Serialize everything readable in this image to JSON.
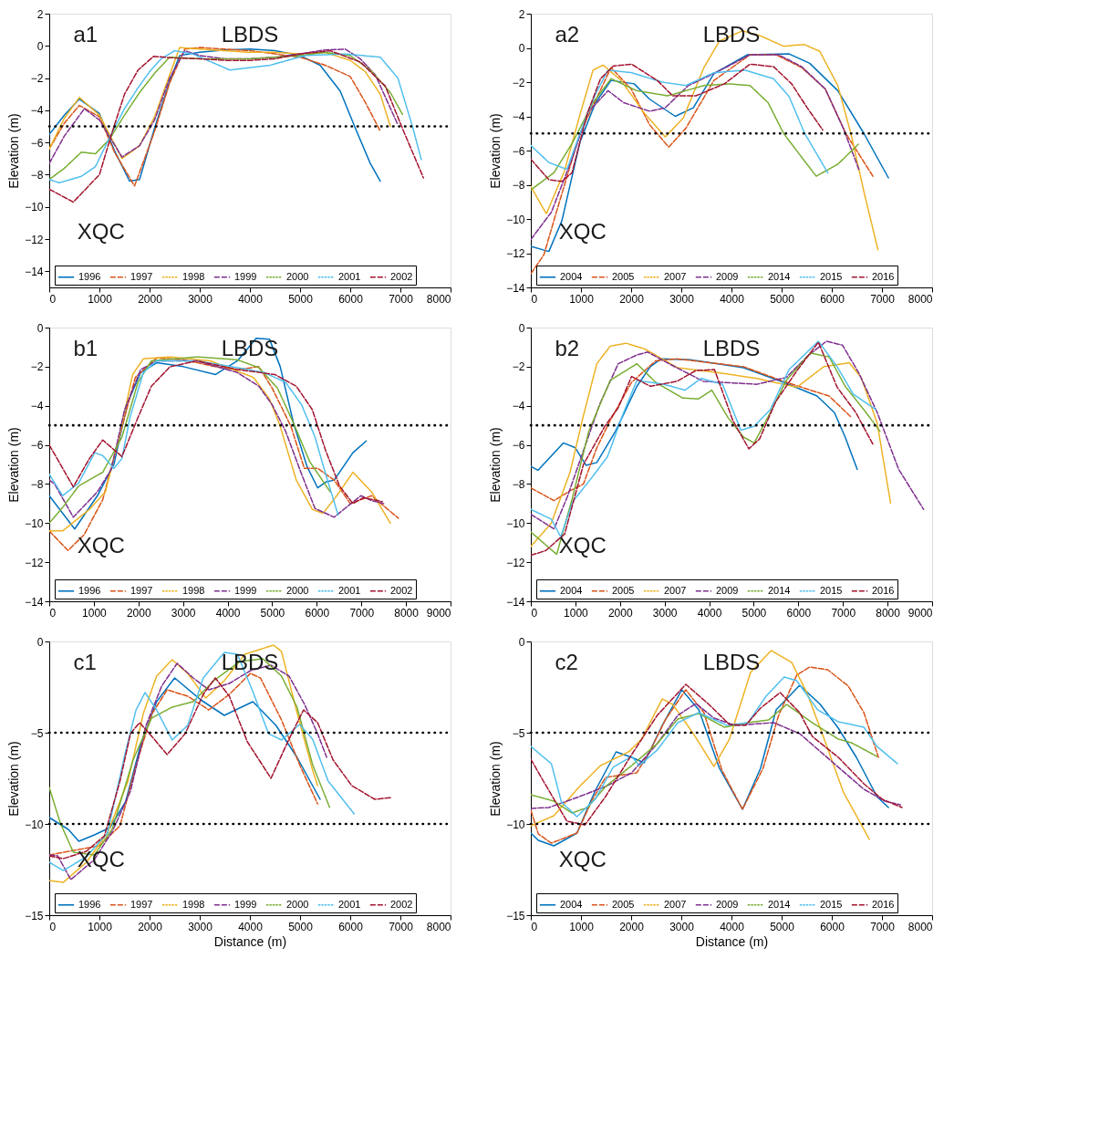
{
  "chart_data": [
    {
      "type": "line",
      "ylabel": "Elevation (m)",
      "xlim": [
        0,
        8000
      ],
      "xticks": [
        0,
        1000,
        2000,
        3000,
        4000,
        5000,
        6000,
        7000,
        8000
      ],
      "ylim": [
        -15,
        2
      ],
      "yticks": [
        2,
        0,
        -2,
        -4,
        -6,
        -8,
        -10,
        -12,
        -14
      ],
      "legend": "bottom",
      "ref_lines": [
        {
          "axis": "y",
          "value": -5,
          "color": "#000000",
          "line_style": "dotted"
        }
      ],
      "annotations": [
        "a1",
        "LBDS",
        "XQC"
      ],
      "series": [
        {
          "name": "1996",
          "color": "#0072bd",
          "line_style": "solid",
          "x": [
            0,
            300,
            600,
            1000,
            1300,
            1600,
            1800,
            2100,
            2400,
            2600,
            3000,
            3500,
            4000,
            4500,
            5000,
            5400,
            5800,
            6100,
            6400,
            6600
          ],
          "values": [
            -5.5,
            -4.3,
            -3.3,
            -4.2,
            -6.5,
            -8.4,
            -8.3,
            -5.1,
            -2.2,
            -0.6,
            -0.4,
            -0.25,
            -0.2,
            -0.3,
            -0.6,
            -1.2,
            -2.8,
            -5.1,
            -7.3,
            -8.4
          ]
        },
        {
          "name": "1997",
          "color": "#d95319",
          "line_style": "dashed",
          "x": [
            0,
            300,
            600,
            1000,
            1300,
            1700,
            2100,
            2400,
            2700,
            3000,
            3500,
            4000,
            4500,
            5000,
            5500,
            6000,
            6300,
            6600
          ],
          "values": [
            -6.4,
            -4.8,
            -3.7,
            -4.4,
            -6.6,
            -8.7,
            -5.3,
            -2.3,
            -0.2,
            -0.1,
            -0.2,
            -0.3,
            -0.5,
            -0.7,
            -1.2,
            -1.9,
            -3.5,
            -5.3
          ]
        },
        {
          "name": "1998",
          "color": "#edb120",
          "line_style": "dotted",
          "x": [
            0,
            300,
            600,
            1000,
            1450,
            1800,
            2100,
            2400,
            2600,
            3000,
            3500,
            4000,
            4500,
            5000,
            5500,
            6000,
            6300,
            6600,
            6800
          ],
          "values": [
            -6.4,
            -4.5,
            -3.2,
            -4.3,
            -7.0,
            -6.2,
            -4.4,
            -1.8,
            -0.1,
            -0.2,
            -0.3,
            -0.4,
            -0.4,
            -0.5,
            -0.4,
            -0.9,
            -1.6,
            -3.0,
            -5.0
          ]
        },
        {
          "name": "1999",
          "color": "#7e2f8e",
          "line_style": "dashed",
          "x": [
            0,
            300,
            700,
            1000,
            1450,
            1800,
            2100,
            2400,
            2700,
            3000,
            3500,
            4000,
            4500,
            5000,
            5500,
            5900,
            6200,
            6500,
            6950
          ],
          "values": [
            -7.3,
            -5.6,
            -3.9,
            -4.6,
            -6.9,
            -6.2,
            -4.6,
            -2.0,
            -0.3,
            -0.6,
            -0.8,
            -0.8,
            -0.7,
            -0.5,
            -0.25,
            -0.2,
            -0.8,
            -1.8,
            -4.9
          ]
        },
        {
          "name": "2000",
          "color": "#77ac30",
          "line_style": "dotted",
          "x": [
            0,
            300,
            640,
            920,
            1200,
            1500,
            1800,
            2100,
            2400,
            3000,
            3500,
            4000,
            4500,
            5000,
            5500,
            6000,
            6400,
            6800,
            7050
          ],
          "values": [
            -8.3,
            -7.6,
            -6.6,
            -6.7,
            -5.8,
            -4.3,
            -2.9,
            -1.7,
            -0.7,
            -0.8,
            -0.8,
            -0.8,
            -0.7,
            -0.6,
            -0.4,
            -0.6,
            -1.5,
            -2.9,
            -4.3
          ]
        },
        {
          "name": "2001",
          "color": "#4dbeee",
          "line_style": "dotted",
          "x": [
            0,
            200,
            640,
            920,
            1250,
            1500,
            1770,
            2000,
            2230,
            2500,
            2860,
            3600,
            4400,
            5100,
            5900,
            6600,
            6950,
            7250,
            7420
          ],
          "values": [
            -8.3,
            -8.5,
            -8.1,
            -7.5,
            -5.4,
            -3.9,
            -2.6,
            -1.6,
            -0.8,
            -0.3,
            -0.5,
            -1.5,
            -1.2,
            -0.6,
            -0.5,
            -0.7,
            -2.0,
            -5.1,
            -7.1
          ]
        },
        {
          "name": "2002",
          "color": "#a2142f",
          "line_style": "dashed",
          "x": [
            0,
            480,
            1000,
            1250,
            1500,
            1770,
            2080,
            2500,
            3000,
            3500,
            4000,
            4500,
            5000,
            5600,
            6200,
            6700,
            7050,
            7460
          ],
          "values": [
            -8.9,
            -9.7,
            -8.0,
            -5.4,
            -3.0,
            -1.5,
            -0.65,
            -0.75,
            -0.8,
            -0.9,
            -0.9,
            -0.8,
            -0.5,
            -0.3,
            -1.0,
            -2.5,
            -5.2,
            -8.2
          ]
        }
      ]
    },
    {
      "type": "line",
      "ylabel": "Elevation (m)",
      "xlim": [
        0,
        8000
      ],
      "xticks": [
        0,
        1000,
        2000,
        3000,
        4000,
        5000,
        6000,
        7000,
        8000
      ],
      "ylim": [
        -14,
        2
      ],
      "yticks": [
        2,
        0,
        -2,
        -4,
        -6,
        -8,
        -10,
        -12,
        -14
      ],
      "legend": "bottom",
      "ref_lines": [
        {
          "axis": "y",
          "value": -5,
          "color": "#000000",
          "line_style": "dotted"
        }
      ],
      "annotations": [
        "a2",
        "LBDS",
        "XQC"
      ],
      "series": [
        {
          "name": "2004",
          "color": "#0072bd",
          "line_style": "solid",
          "x": [
            0,
            360,
            620,
            980,
            1290,
            1600,
            2060,
            2370,
            2880,
            3240,
            3650,
            4320,
            5150,
            5560,
            6120,
            6640,
            7130
          ],
          "values": [
            -11.6,
            -11.9,
            -10.1,
            -5.5,
            -3.2,
            -1.9,
            -2.1,
            -3.0,
            -4.0,
            -3.5,
            -1.5,
            -0.4,
            -0.35,
            -0.9,
            -2.5,
            -5.0,
            -7.6
          ]
        },
        {
          "name": "2005",
          "color": "#d95319",
          "line_style": "dashed",
          "x": [
            0,
            260,
            570,
            980,
            1600,
            2000,
            2370,
            2750,
            3090,
            3650,
            4370,
            4890,
            5400,
            5870,
            6280,
            6820
          ],
          "values": [
            -13.2,
            -12.1,
            -9.0,
            -5.0,
            -1.15,
            -2.4,
            -4.5,
            -5.8,
            -4.7,
            -1.9,
            -0.4,
            -0.4,
            -1.15,
            -2.4,
            -5.0,
            -7.5
          ]
        },
        {
          "name": "2007",
          "color": "#edb120",
          "line_style": "dotted",
          "x": [
            0,
            310,
            670,
            980,
            1240,
            1440,
            1800,
            2260,
            2680,
            3040,
            3450,
            3760,
            4220,
            4580,
            5040,
            5450,
            5760,
            6120,
            6380,
            6640,
            6920
          ],
          "values": [
            -8.1,
            -9.7,
            -7.2,
            -3.9,
            -1.3,
            -1.0,
            -1.9,
            -3.8,
            -5.2,
            -4.1,
            -1.15,
            0.4,
            1.0,
            0.7,
            0.1,
            0.2,
            -0.2,
            -2.2,
            -5.0,
            -8.4,
            -11.8
          ]
        },
        {
          "name": "2009",
          "color": "#7e2f8e",
          "line_style": "dashed",
          "x": [
            0,
            410,
            820,
            1130,
            1540,
            1850,
            2370,
            2680,
            3140,
            3650,
            4370,
            4940,
            5400,
            5870,
            6230,
            6540
          ],
          "values": [
            -11.2,
            -9.6,
            -6.5,
            -3.8,
            -2.5,
            -3.2,
            -3.7,
            -3.5,
            -2.2,
            -1.5,
            -0.4,
            -0.4,
            -1.1,
            -2.4,
            -4.7,
            -7.1
          ]
        },
        {
          "name": "2014",
          "color": "#77ac30",
          "line_style": "dotted",
          "x": [
            0,
            460,
            820,
            1240,
            1600,
            2110,
            2730,
            3450,
            3960,
            4370,
            4730,
            5040,
            5350,
            5690,
            6120,
            6540
          ],
          "values": [
            -8.3,
            -7.3,
            -5.6,
            -3.2,
            -1.8,
            -2.5,
            -2.8,
            -2.2,
            -2.1,
            -2.2,
            -3.2,
            -5.0,
            -6.2,
            -7.5,
            -6.8,
            -5.6
          ]
        },
        {
          "name": "2015",
          "color": "#4dbeee",
          "line_style": "dotted",
          "x": [
            0,
            360,
            720,
            980,
            1290,
            1540,
            2010,
            2620,
            3090,
            3650,
            4270,
            4840,
            5150,
            5460,
            5920
          ],
          "values": [
            -5.7,
            -6.7,
            -7.1,
            -5.0,
            -2.7,
            -1.3,
            -1.45,
            -2.0,
            -2.2,
            -1.45,
            -1.3,
            -1.8,
            -2.85,
            -5.0,
            -7.3
          ]
        },
        {
          "name": "2016",
          "color": "#a2142f",
          "line_style": "dashed",
          "x": [
            0,
            360,
            620,
            820,
            1130,
            1390,
            1650,
            2010,
            2520,
            2830,
            3290,
            3860,
            4370,
            4840,
            5200,
            5510,
            5820
          ],
          "values": [
            -6.5,
            -7.7,
            -7.8,
            -7.3,
            -3.8,
            -1.8,
            -1.05,
            -0.95,
            -1.9,
            -2.8,
            -2.8,
            -2.1,
            -0.95,
            -1.1,
            -2.1,
            -3.5,
            -4.8
          ]
        }
      ]
    },
    {
      "type": "line",
      "ylabel": "Elevation (m)",
      "xlim": [
        0,
        9000
      ],
      "xticks": [
        0,
        1000,
        2000,
        3000,
        4000,
        5000,
        6000,
        7000,
        8000,
        9000
      ],
      "ylim": [
        -14,
        0
      ],
      "yticks": [
        0,
        -2,
        -4,
        -6,
        -8,
        -10,
        -12,
        -14
      ],
      "legend": "bottom",
      "ref_lines": [
        {
          "axis": "y",
          "value": -5,
          "color": "#000000",
          "line_style": "dotted"
        }
      ],
      "annotations": [
        "b1",
        "LBDS",
        "XQC"
      ],
      "series": [
        {
          "name": "1996",
          "color": "#0072bd",
          "line_style": "solid",
          "x": [
            0,
            570,
            1080,
            1450,
            1750,
            2050,
            2410,
            3010,
            3730,
            4220,
            4640,
            4940,
            5180,
            5480,
            5780,
            6020,
            6200,
            6390,
            6810,
            7110
          ],
          "values": [
            -8.6,
            -10.3,
            -8.6,
            -7.0,
            -3.9,
            -2.3,
            -1.8,
            -2.0,
            -2.4,
            -1.7,
            -0.55,
            -0.6,
            -2.0,
            -4.9,
            -7.1,
            -8.2,
            -7.9,
            -7.8,
            -6.4,
            -5.8
          ]
        },
        {
          "name": "1997",
          "color": "#d95319",
          "line_style": "dashed",
          "x": [
            0,
            420,
            780,
            1200,
            1570,
            1930,
            2410,
            3010,
            3730,
            4220,
            4700,
            5000,
            5420,
            5720,
            6020,
            6390,
            6750,
            7230,
            7830
          ],
          "values": [
            -10.4,
            -11.4,
            -10.6,
            -8.8,
            -5.6,
            -2.55,
            -1.55,
            -1.65,
            -2.0,
            -2.15,
            -2.0,
            -3.1,
            -5.05,
            -7.2,
            -7.2,
            -7.8,
            -9.0,
            -8.6,
            -9.75
          ]
        },
        {
          "name": "1998",
          "color": "#edb120",
          "line_style": "dotted",
          "x": [
            0,
            300,
            900,
            1260,
            1570,
            1870,
            2110,
            2710,
            3610,
            4580,
            4940,
            5180,
            5540,
            5900,
            6140,
            6450,
            6810,
            7230,
            7650
          ],
          "values": [
            -10.4,
            -10.4,
            -9.3,
            -8.4,
            -5.6,
            -2.4,
            -1.6,
            -1.5,
            -1.7,
            -2.55,
            -3.65,
            -5.05,
            -7.8,
            -9.3,
            -9.5,
            -8.6,
            -7.4,
            -8.4,
            -10.0
          ]
        },
        {
          "name": "1999",
          "color": "#7e2f8e",
          "line_style": "dashed",
          "x": [
            0,
            120,
            540,
            1080,
            1390,
            1690,
            2050,
            2410,
            3310,
            4220,
            4700,
            5000,
            5300,
            5660,
            5960,
            6390,
            6630,
            6990,
            7230,
            7500
          ],
          "values": [
            -7.8,
            -8.0,
            -9.7,
            -8.4,
            -7.25,
            -4.2,
            -2.15,
            -1.7,
            -1.7,
            -2.3,
            -3.0,
            -3.95,
            -5.3,
            -7.5,
            -9.25,
            -9.7,
            -9.25,
            -8.6,
            -8.85,
            -9.0
          ]
        },
        {
          "name": "2000",
          "color": "#77ac30",
          "line_style": "dotted",
          "x": [
            0,
            300,
            660,
            1200,
            1630,
            1990,
            2290,
            3310,
            4220,
            4700,
            5120,
            5480,
            5840,
            6300
          ],
          "values": [
            -10.0,
            -9.2,
            -8.1,
            -7.4,
            -5.6,
            -2.8,
            -1.7,
            -1.5,
            -1.65,
            -2.05,
            -3.1,
            -4.9,
            -6.85,
            -8.4
          ]
        },
        {
          "name": "2001",
          "color": "#4dbeee",
          "line_style": "dotted",
          "x": [
            0,
            300,
            660,
            1020,
            1200,
            1450,
            1630,
            1810,
            2110,
            2410,
            3310,
            4220,
            4820,
            5300,
            5660,
            5960,
            6200,
            6480
          ],
          "values": [
            -7.5,
            -8.6,
            -7.95,
            -6.4,
            -6.55,
            -7.2,
            -6.7,
            -4.6,
            -2.3,
            -1.7,
            -1.7,
            -2.05,
            -2.3,
            -2.8,
            -3.95,
            -5.6,
            -7.5,
            -9.6
          ]
        },
        {
          "name": "2002",
          "color": "#a2142f",
          "line_style": "dashed",
          "x": [
            0,
            540,
            900,
            1200,
            1630,
            1990,
            2290,
            2710,
            3310,
            4220,
            5060,
            5540,
            5900,
            6200,
            6510,
            6810,
            7050,
            7470
          ],
          "values": [
            -6.0,
            -8.15,
            -6.7,
            -5.75,
            -6.6,
            -4.6,
            -3.0,
            -2.0,
            -1.7,
            -2.15,
            -2.4,
            -3.0,
            -4.2,
            -6.3,
            -8.1,
            -9.0,
            -8.7,
            -8.9
          ]
        }
      ]
    },
    {
      "type": "line",
      "ylabel": "Elevation (m)",
      "xlim": [
        0,
        9000
      ],
      "xticks": [
        0,
        1000,
        2000,
        3000,
        4000,
        5000,
        6000,
        7000,
        8000,
        9000
      ],
      "ylim": [
        -14,
        0
      ],
      "yticks": [
        0,
        -2,
        -4,
        -6,
        -8,
        -10,
        -12,
        -14
      ],
      "legend": "bottom",
      "ref_lines": [
        {
          "axis": "y",
          "value": -5,
          "color": "#000000",
          "line_style": "dotted"
        }
      ],
      "annotations": [
        "b2",
        "LBDS",
        "XQC"
      ],
      "series": [
        {
          "name": "2004",
          "color": "#0072bd",
          "line_style": "solid",
          "x": [
            0,
            160,
            730,
            1000,
            1240,
            1480,
            1900,
            2380,
            2680,
            2920,
            3580,
            4770,
            5670,
            6420,
            6810,
            7050,
            7320
          ],
          "values": [
            -7.1,
            -7.3,
            -5.9,
            -6.15,
            -7.05,
            -6.9,
            -5.3,
            -3.0,
            -2.0,
            -1.6,
            -1.65,
            -2.05,
            -2.8,
            -3.5,
            -4.35,
            -5.6,
            -7.25
          ]
        },
        {
          "name": "2005",
          "color": "#d95319",
          "line_style": "dashed",
          "x": [
            0,
            520,
            880,
            1180,
            1480,
            1780,
            2260,
            2800,
            3280,
            4770,
            5670,
            6270,
            6690,
            7170
          ],
          "values": [
            -8.2,
            -8.85,
            -8.35,
            -8.0,
            -6.15,
            -4.75,
            -2.8,
            -1.7,
            -1.6,
            -2.0,
            -2.75,
            -3.2,
            -3.5,
            -4.55
          ]
        },
        {
          "name": "2007",
          "color": "#edb120",
          "line_style": "dotted",
          "x": [
            0,
            460,
            880,
            1180,
            1480,
            1780,
            2140,
            2560,
            3280,
            4180,
            5070,
            5970,
            6570,
            7140,
            7410,
            7770,
            8070
          ],
          "values": [
            -11.2,
            -10.0,
            -7.4,
            -4.5,
            -1.85,
            -0.95,
            -0.8,
            -1.1,
            -2.05,
            -2.3,
            -2.6,
            -3.05,
            -2.0,
            -1.8,
            -2.55,
            -4.9,
            -9.0
          ]
        },
        {
          "name": "2009",
          "color": "#7e2f8e",
          "line_style": "dashed",
          "x": [
            0,
            520,
            820,
            1180,
            1540,
            1960,
            2380,
            2620,
            3100,
            3870,
            5070,
            5730,
            6210,
            6630,
            6990,
            7350,
            7770,
            8250,
            8810
          ],
          "values": [
            -9.55,
            -10.3,
            -8.65,
            -6.3,
            -3.95,
            -1.85,
            -1.4,
            -1.25,
            -1.85,
            -2.75,
            -2.9,
            -2.55,
            -1.45,
            -0.7,
            -0.9,
            -2.3,
            -4.35,
            -7.25,
            -9.3
          ]
        },
        {
          "name": "2014",
          "color": "#77ac30",
          "line_style": "dotted",
          "x": [
            0,
            580,
            940,
            1300,
            1780,
            2380,
            2800,
            3400,
            3760,
            4060,
            4420,
            4770,
            5010,
            5370,
            5730,
            6270,
            6690,
            7050,
            7470,
            7830
          ],
          "values": [
            -10.45,
            -11.6,
            -8.65,
            -5.3,
            -2.7,
            -1.85,
            -2.8,
            -3.6,
            -3.65,
            -3.2,
            -4.6,
            -5.6,
            -5.9,
            -4.35,
            -2.7,
            -1.3,
            -1.5,
            -3.0,
            -4.2,
            -5.3
          ]
        },
        {
          "name": "2015",
          "color": "#4dbeee",
          "line_style": "dotted",
          "x": [
            0,
            460,
            670,
            940,
            1360,
            1720,
            2080,
            2380,
            2980,
            3460,
            3820,
            4300,
            4710,
            5010,
            5370,
            5790,
            6450,
            6870,
            7230,
            7740
          ],
          "values": [
            -9.3,
            -9.8,
            -10.7,
            -8.9,
            -7.7,
            -6.6,
            -4.35,
            -2.7,
            -2.9,
            -3.2,
            -2.6,
            -2.9,
            -5.25,
            -5.05,
            -4.2,
            -2.15,
            -0.7,
            -2.0,
            -3.4,
            -4.2
          ]
        },
        {
          "name": "2016",
          "color": "#a2142f",
          "line_style": "dashed",
          "x": [
            0,
            340,
            760,
            1180,
            1660,
            1960,
            2260,
            2680,
            3280,
            3700,
            4120,
            4530,
            4890,
            5130,
            5490,
            5970,
            6450,
            6870,
            7290,
            7680
          ],
          "values": [
            -11.65,
            -11.4,
            -10.55,
            -7.0,
            -5.05,
            -4.1,
            -2.5,
            -3.0,
            -2.75,
            -2.2,
            -2.15,
            -4.75,
            -6.2,
            -5.7,
            -3.8,
            -2.2,
            -0.75,
            -3.05,
            -4.35,
            -6.0
          ]
        }
      ]
    },
    {
      "type": "line",
      "xlabel": "Distance (m)",
      "ylabel": "Elevation (m)",
      "xlim": [
        0,
        8000
      ],
      "xticks": [
        0,
        1000,
        2000,
        3000,
        4000,
        5000,
        6000,
        7000,
        8000
      ],
      "ylim": [
        -15,
        0
      ],
      "yticks": [
        0,
        -5,
        -10,
        -15
      ],
      "legend": "bottom",
      "ref_lines": [
        {
          "axis": "y",
          "value": -5,
          "color": "#000000",
          "line_style": "dotted"
        },
        {
          "axis": "y",
          "value": -10,
          "color": "#000000",
          "line_style": "dotted"
        }
      ],
      "annotations": [
        "c1",
        "LBDS",
        "XQC"
      ],
      "series": [
        {
          "name": "1996",
          "color": "#0072bd",
          "line_style": "solid",
          "x": [
            0,
            380,
            590,
            900,
            1210,
            1520,
            1830,
            2140,
            2500,
            3020,
            3490,
            4060,
            4520,
            4940,
            5400
          ],
          "values": [
            -9.65,
            -10.3,
            -10.95,
            -10.6,
            -10.2,
            -8.8,
            -5.6,
            -3.3,
            -2.0,
            -3.2,
            -4.05,
            -3.3,
            -4.6,
            -6.35,
            -8.65
          ]
        },
        {
          "name": "1997",
          "color": "#d95319",
          "line_style": "dashed",
          "x": [
            0,
            590,
            1000,
            1410,
            1730,
            2040,
            2350,
            2760,
            3180,
            3590,
            4010,
            4210,
            4630,
            4990,
            5350
          ],
          "values": [
            -11.7,
            -11.4,
            -11.2,
            -10.1,
            -6.8,
            -4.0,
            -2.65,
            -3.0,
            -3.75,
            -2.9,
            -1.75,
            -2.0,
            -4.3,
            -6.75,
            -8.9
          ]
        },
        {
          "name": "1998",
          "color": "#edb120",
          "line_style": "dotted",
          "x": [
            0,
            280,
            740,
            1160,
            1570,
            1880,
            2140,
            2450,
            2760,
            3120,
            3490,
            3900,
            4470,
            4630,
            4940,
            5250,
            5350
          ],
          "values": [
            -13.1,
            -13.2,
            -12.1,
            -10.5,
            -7.65,
            -3.9,
            -1.9,
            -1.0,
            -1.75,
            -3.1,
            -2.15,
            -0.7,
            -0.2,
            -0.55,
            -3.9,
            -7.05,
            -7.9
          ]
        },
        {
          "name": "1999",
          "color": "#7e2f8e",
          "line_style": "dashed",
          "x": [
            0,
            170,
            430,
            900,
            1260,
            1620,
            1930,
            2240,
            2550,
            2870,
            3180,
            3590,
            4010,
            4420,
            4780,
            5090,
            5350,
            5530
          ],
          "values": [
            -11.7,
            -11.75,
            -13.05,
            -11.95,
            -10.4,
            -8.2,
            -4.6,
            -2.45,
            -1.2,
            -2.0,
            -2.65,
            -2.3,
            -1.6,
            -1.3,
            -1.9,
            -3.45,
            -5.05,
            -6.35
          ]
        },
        {
          "name": "2000",
          "color": "#77ac30",
          "line_style": "dotted",
          "x": [
            0,
            220,
            480,
            900,
            1260,
            1670,
            2040,
            2450,
            2870,
            3280,
            3800,
            4260,
            4630,
            4940,
            5250,
            5590
          ],
          "values": [
            -8.0,
            -9.95,
            -11.55,
            -11.7,
            -10.25,
            -6.5,
            -4.2,
            -3.6,
            -3.3,
            -2.15,
            -1.1,
            -0.95,
            -1.9,
            -3.6,
            -6.75,
            -9.1
          ]
        },
        {
          "name": "2001",
          "color": "#4dbeee",
          "line_style": "dotted",
          "x": [
            0,
            280,
            740,
            1160,
            1520,
            1730,
            1910,
            2140,
            2450,
            2760,
            3070,
            3490,
            3750,
            4060,
            4370,
            4630,
            4990,
            5250,
            5560,
            6080
          ],
          "values": [
            -12.1,
            -12.55,
            -11.8,
            -10.5,
            -6.05,
            -3.75,
            -2.8,
            -3.75,
            -5.4,
            -4.6,
            -2.0,
            -0.6,
            -0.7,
            -2.75,
            -5.05,
            -5.4,
            -4.55,
            -5.35,
            -7.65,
            -9.45
          ]
        },
        {
          "name": "2002",
          "color": "#a2142f",
          "line_style": "dashed",
          "x": [
            0,
            280,
            740,
            1100,
            1410,
            1620,
            1800,
            2090,
            2350,
            2710,
            3070,
            3310,
            3590,
            3950,
            4420,
            4780,
            5070,
            5350,
            5660,
            6030,
            6490,
            6830
          ],
          "values": [
            -11.75,
            -11.9,
            -11.5,
            -10.65,
            -7.65,
            -5.05,
            -4.45,
            -5.35,
            -6.2,
            -5.05,
            -2.9,
            -2.0,
            -3.0,
            -5.5,
            -7.5,
            -5.35,
            -3.75,
            -4.45,
            -6.5,
            -7.9,
            -8.65,
            -8.55
          ]
        }
      ]
    },
    {
      "type": "line",
      "xlabel": "Distance (m)",
      "ylabel": "Elevation (m)",
      "xlim": [
        0,
        8000
      ],
      "xticks": [
        0,
        1000,
        2000,
        3000,
        4000,
        5000,
        6000,
        7000,
        8000
      ],
      "ylim": [
        -15,
        0
      ],
      "yticks": [
        0,
        -5,
        -10,
        -15
      ],
      "legend": "bottom",
      "ref_lines": [
        {
          "axis": "y",
          "value": -5,
          "color": "#000000",
          "line_style": "dotted"
        },
        {
          "axis": "y",
          "value": -10,
          "color": "#000000",
          "line_style": "dotted"
        }
      ],
      "annotations": [
        "c2",
        "LBDS",
        "XQC"
      ],
      "series": [
        {
          "name": "2004",
          "color": "#0072bd",
          "line_style": "solid",
          "x": [
            0,
            150,
            460,
            920,
            1280,
            1700,
            2010,
            2260,
            2620,
            3010,
            3350,
            3760,
            4220,
            4580,
            4890,
            5360,
            5770,
            6130,
            6490,
            6900,
            7130
          ],
          "values": [
            -10.5,
            -10.9,
            -11.2,
            -10.5,
            -8.2,
            -6.05,
            -6.35,
            -6.65,
            -4.6,
            -2.65,
            -3.75,
            -6.95,
            -9.2,
            -6.95,
            -3.75,
            -2.4,
            -3.45,
            -4.75,
            -6.35,
            -8.5,
            -9.1
          ]
        },
        {
          "name": "2005",
          "color": "#d95319",
          "line_style": "dashed",
          "x": [
            0,
            150,
            410,
            920,
            1230,
            1490,
            2110,
            2370,
            2680,
            3090,
            3450,
            3810,
            4220,
            4630,
            4940,
            5300,
            5560,
            5920,
            6330,
            6640,
            6930
          ],
          "values": [
            -9.25,
            -10.55,
            -11.05,
            -10.5,
            -8.65,
            -7.45,
            -7.2,
            -6.05,
            -4.3,
            -2.65,
            -3.9,
            -7.05,
            -9.2,
            -6.95,
            -4.05,
            -1.85,
            -1.4,
            -1.55,
            -2.45,
            -3.9,
            -6.35
          ]
        },
        {
          "name": "2007",
          "color": "#edb120",
          "line_style": "dotted",
          "x": [
            0,
            460,
            970,
            1390,
            1950,
            2210,
            2620,
            2830,
            3240,
            3650,
            3960,
            4380,
            4790,
            5200,
            5510,
            5870,
            6230,
            6750
          ],
          "values": [
            -10.1,
            -9.55,
            -7.95,
            -6.8,
            -6.05,
            -5.35,
            -3.15,
            -3.45,
            -5.05,
            -6.85,
            -5.35,
            -1.7,
            -0.5,
            -1.15,
            -2.85,
            -5.5,
            -8.25,
            -10.85
          ]
        },
        {
          "name": "2009",
          "color": "#7e2f8e",
          "line_style": "dashed",
          "x": [
            0,
            360,
            970,
            1490,
            2010,
            2520,
            2930,
            3290,
            3650,
            4070,
            4840,
            5360,
            6030,
            6640,
            7060,
            7370
          ],
          "values": [
            -9.15,
            -9.1,
            -8.5,
            -7.95,
            -7.2,
            -5.6,
            -4.05,
            -3.4,
            -4.2,
            -4.6,
            -4.45,
            -5.05,
            -6.65,
            -8.1,
            -8.75,
            -8.95
          ]
        },
        {
          "name": "2014",
          "color": "#77ac30",
          "line_style": "dotted",
          "x": [
            0,
            460,
            820,
            1130,
            1490,
            2010,
            2520,
            2930,
            3350,
            3860,
            4330,
            4740,
            5100,
            5610,
            6130,
            6390,
            6900
          ],
          "values": [
            -8.4,
            -8.75,
            -9.4,
            -9.1,
            -7.95,
            -6.8,
            -5.6,
            -4.25,
            -3.95,
            -4.7,
            -4.45,
            -4.3,
            -3.45,
            -4.45,
            -5.35,
            -5.55,
            -6.3
          ]
        },
        {
          "name": "2015",
          "color": "#4dbeee",
          "line_style": "dotted",
          "x": [
            0,
            410,
            610,
            920,
            1280,
            1640,
            2010,
            2160,
            2520,
            2930,
            3350,
            3910,
            4330,
            4690,
            5050,
            5300,
            5720,
            6130,
            6640,
            6900,
            7310
          ],
          "values": [
            -5.75,
            -6.7,
            -8.8,
            -9.6,
            -8.65,
            -6.9,
            -6.3,
            -6.8,
            -5.95,
            -4.45,
            -3.9,
            -4.6,
            -4.45,
            -3.0,
            -1.95,
            -2.15,
            -3.75,
            -4.4,
            -4.7,
            -5.75,
            -6.7
          ]
        },
        {
          "name": "2016",
          "color": "#a2142f",
          "line_style": "dashed",
          "x": [
            0,
            250,
            720,
            1080,
            1490,
            2010,
            2520,
            3090,
            3550,
            3960,
            4280,
            4580,
            4970,
            5360,
            5610,
            6130,
            6640,
            7010,
            7400
          ],
          "values": [
            -6.45,
            -7.65,
            -9.85,
            -10.05,
            -8.5,
            -6.2,
            -4.05,
            -2.35,
            -3.45,
            -4.55,
            -4.6,
            -3.65,
            -2.8,
            -3.9,
            -5.2,
            -6.35,
            -7.8,
            -8.65,
            -9.1
          ]
        }
      ]
    }
  ]
}
